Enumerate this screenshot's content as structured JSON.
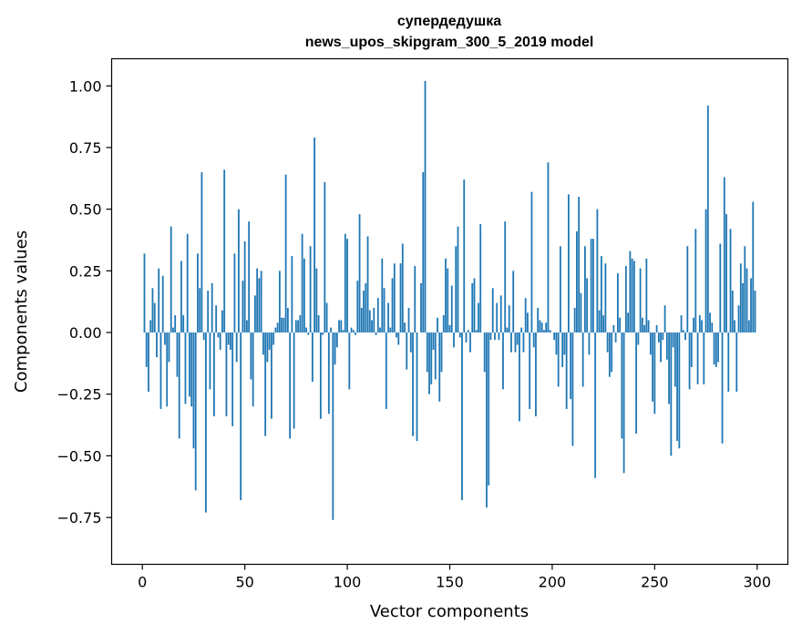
{
  "chart_data": {
    "type": "bar",
    "title": "супердедушка",
    "subtitle": "news_upos_skipgram_300_5_2019 model",
    "xlabel": "Vector components",
    "ylabel": "Components values",
    "xlim": [
      -15,
      315
    ],
    "ylim": [
      -0.94,
      1.11
    ],
    "x_ticks": [
      0,
      50,
      100,
      150,
      200,
      250,
      300
    ],
    "x_tick_labels": [
      "0",
      "50",
      "100",
      "150",
      "200",
      "250",
      "300"
    ],
    "y_ticks": [
      1.0,
      0.75,
      0.5,
      0.25,
      0.0,
      -0.25,
      -0.5,
      -0.75
    ],
    "y_tick_labels": [
      "1.00",
      "0.75",
      "0.50",
      "0.25",
      "0.00",
      "−0.25",
      "−0.50",
      "−0.75"
    ],
    "grid": false,
    "bar_color": "#1f77b4",
    "x": [
      0,
      1,
      2,
      3,
      4,
      5,
      6,
      7,
      8,
      9,
      10,
      11,
      12,
      13,
      14,
      15,
      16,
      17,
      18,
      19,
      20,
      21,
      22,
      23,
      24,
      25,
      26,
      27,
      28,
      29,
      30,
      31,
      32,
      33,
      34,
      35,
      36,
      37,
      38,
      39,
      40,
      41,
      42,
      43,
      44,
      45,
      46,
      47,
      48,
      49,
      50,
      51,
      52,
      53,
      54,
      55,
      56,
      57,
      58,
      59,
      60,
      61,
      62,
      63,
      64,
      65,
      66,
      67,
      68,
      69,
      70,
      71,
      72,
      73,
      74,
      75,
      76,
      77,
      78,
      79,
      80,
      81,
      82,
      83,
      84,
      85,
      86,
      87,
      88,
      89,
      90,
      91,
      92,
      93,
      94,
      95,
      96,
      97,
      98,
      99,
      100,
      101,
      102,
      103,
      104,
      105,
      106,
      107,
      108,
      109,
      110,
      111,
      112,
      113,
      114,
      115,
      116,
      117,
      118,
      119,
      120,
      121,
      122,
      123,
      124,
      125,
      126,
      127,
      128,
      129,
      130,
      131,
      132,
      133,
      134,
      135,
      136,
      137,
      138,
      139,
      140,
      141,
      142,
      143,
      144,
      145,
      146,
      147,
      148,
      149,
      150,
      151,
      152,
      153,
      154,
      155,
      156,
      157,
      158,
      159,
      160,
      161,
      162,
      163,
      164,
      165,
      166,
      167,
      168,
      169,
      170,
      171,
      172,
      173,
      174,
      175,
      176,
      177,
      178,
      179,
      180,
      181,
      182,
      183,
      184,
      185,
      186,
      187,
      188,
      189,
      190,
      191,
      192,
      193,
      194,
      195,
      196,
      197,
      198,
      199,
      200,
      201,
      202,
      203,
      204,
      205,
      206,
      207,
      208,
      209,
      210,
      211,
      212,
      213,
      214,
      215,
      216,
      217,
      218,
      219,
      220,
      221,
      222,
      223,
      224,
      225,
      226,
      227,
      228,
      229,
      230,
      231,
      232,
      233,
      234,
      235,
      236,
      237,
      238,
      239,
      240,
      241,
      242,
      243,
      244,
      245,
      246,
      247,
      248,
      249,
      250,
      251,
      252,
      253,
      254,
      255,
      256,
      257,
      258,
      259,
      260,
      261,
      262,
      263,
      264,
      265,
      266,
      267,
      268,
      269,
      270,
      271,
      272,
      273,
      274,
      275,
      276,
      277,
      278,
      279,
      280,
      281,
      282,
      283,
      284,
      285,
      286,
      287,
      288,
      289,
      290,
      291,
      292,
      293,
      294,
      295,
      296,
      297,
      298,
      299
    ],
    "values": [
      0.0,
      0.32,
      -0.14,
      -0.24,
      0.05,
      0.18,
      0.12,
      -0.1,
      0.26,
      -0.31,
      0.23,
      -0.05,
      -0.3,
      -0.12,
      0.43,
      0.02,
      0.07,
      -0.18,
      -0.43,
      0.29,
      0.07,
      -0.29,
      0.4,
      -0.26,
      -0.3,
      -0.47,
      -0.64,
      0.32,
      0.18,
      0.65,
      -0.03,
      -0.73,
      0.17,
      -0.23,
      0.2,
      -0.34,
      0.11,
      -0.02,
      -0.07,
      0.09,
      0.66,
      -0.34,
      -0.05,
      -0.07,
      -0.38,
      0.32,
      -0.12,
      0.5,
      -0.68,
      0.21,
      0.37,
      0.05,
      0.45,
      -0.19,
      -0.3,
      0.15,
      0.26,
      0.22,
      0.25,
      -0.09,
      -0.42,
      -0.12,
      -0.07,
      -0.35,
      -0.05,
      0.02,
      0.04,
      0.25,
      0.06,
      0.06,
      0.64,
      0.1,
      -0.43,
      0.31,
      -0.39,
      0.05,
      0.05,
      0.07,
      0.4,
      0.3,
      0.02,
      -0.01,
      0.35,
      -0.2,
      0.79,
      0.26,
      0.07,
      -0.35,
      -0.01,
      0.61,
      0.12,
      -0.33,
      0.02,
      -0.76,
      -0.13,
      -0.06,
      0.05,
      0.05,
      0.01,
      0.4,
      0.38,
      -0.23,
      0.02,
      0.01,
      -0.01,
      0.21,
      0.48,
      0.1,
      0.17,
      0.2,
      0.39,
      0.09,
      0.05,
      0.1,
      -0.01,
      0.14,
      0.02,
      0.3,
      0.18,
      -0.31,
      0.12,
      0.02,
      0.22,
      0.28,
      -0.02,
      -0.05,
      0.28,
      0.36,
      0.04,
      -0.15,
      0.1,
      -0.08,
      -0.42,
      0.27,
      -0.44,
      0.0,
      0.2,
      0.65,
      1.02,
      -0.16,
      -0.25,
      -0.21,
      -0.07,
      -0.19,
      0.06,
      -0.28,
      -0.16,
      0.07,
      0.3,
      0.26,
      0.03,
      0.19,
      -0.06,
      0.35,
      0.43,
      -0.02,
      -0.68,
      0.62,
      -0.04,
      0.01,
      -0.08,
      0.2,
      0.22,
      0.01,
      0.12,
      0.44,
      0.0,
      -0.16,
      -0.71,
      -0.62,
      -0.03,
      0.18,
      -0.03,
      0.12,
      -0.03,
      0.15,
      -0.23,
      0.45,
      0.02,
      0.11,
      -0.08,
      0.25,
      -0.08,
      -0.05,
      -0.36,
      0.02,
      -0.08,
      0.14,
      0.08,
      -0.31,
      0.57,
      -0.06,
      -0.34,
      0.1,
      0.05,
      0.04,
      0.01,
      0.04,
      0.69,
      0.01,
      0.0,
      -0.03,
      -0.09,
      -0.22,
      0.35,
      -0.14,
      -0.09,
      -0.31,
      0.56,
      -0.27,
      -0.46,
      0.1,
      0.41,
      0.55,
      0.16,
      -0.22,
      0.35,
      0.22,
      -0.09,
      0.38,
      0.38,
      -0.59,
      0.5,
      0.09,
      0.31,
      0.07,
      0.28,
      -0.08,
      -0.18,
      -0.16,
      0.03,
      -0.04,
      0.24,
      0.06,
      -0.43,
      -0.57,
      0.27,
      0.08,
      0.33,
      0.3,
      0.29,
      -0.41,
      -0.05,
      0.26,
      0.06,
      0.03,
      0.3,
      0.05,
      -0.09,
      -0.28,
      -0.33,
      0.03,
      -0.04,
      -0.12,
      -0.03,
      0.11,
      -0.11,
      -0.29,
      -0.5,
      -0.06,
      -0.22,
      -0.44,
      -0.47,
      0.07,
      0.01,
      -0.03,
      0.35,
      -0.23,
      -0.14,
      0.06,
      0.42,
      -0.21,
      0.07,
      0.05,
      -0.21,
      0.5,
      0.92,
      0.08,
      0.04,
      -0.13,
      -0.14,
      -0.12,
      0.36,
      -0.45,
      0.63,
      0.48,
      -0.24,
      0.42,
      0.17,
      0.05,
      -0.24,
      0.11,
      0.28,
      0.2,
      0.35,
      0.26,
      0.05,
      0.22,
      0.53,
      0.17
    ]
  }
}
